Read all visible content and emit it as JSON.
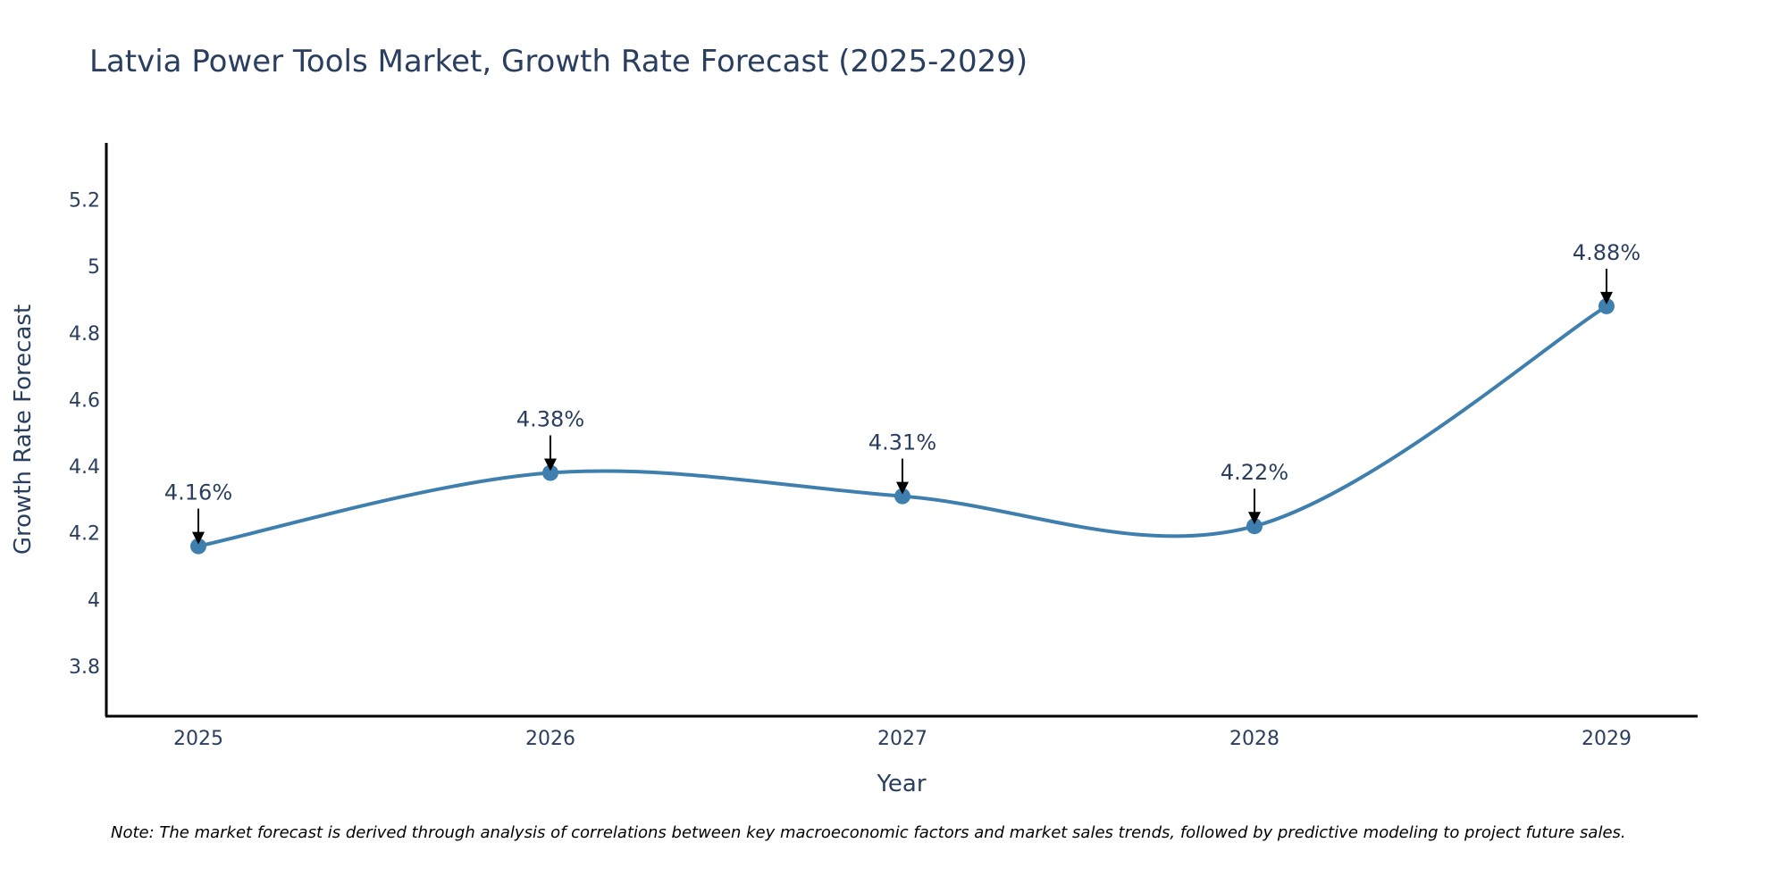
{
  "chart_data": {
    "type": "line",
    "title": "Latvia Power Tools Market, Growth Rate Forecast (2025-2029)",
    "xlabel": "Year",
    "ylabel": "Growth Rate Forecast",
    "categories": [
      "2025",
      "2026",
      "2027",
      "2028",
      "2029"
    ],
    "series": [
      {
        "name": "Growth Rate Forecast",
        "values": [
          4.16,
          4.38,
          4.31,
          4.22,
          4.88
        ],
        "color": "#3f7fad"
      }
    ],
    "data_labels": [
      "4.16%",
      "4.38%",
      "4.31%",
      "4.22%",
      "4.88%"
    ],
    "yticks": [
      3.8,
      4,
      4.2,
      4.4,
      4.6,
      4.8,
      5,
      5.2
    ],
    "ytick_labels": [
      "3.8",
      "4",
      "4.2",
      "4.4",
      "4.6",
      "4.8",
      "5",
      "5.2"
    ],
    "ylim": [
      3.65,
      5.37
    ],
    "grid": false,
    "legend": "none",
    "note": "Note: The market forecast is derived through analysis of correlations between key macroeconomic factors and market sales trends, followed by predictive modeling to project future sales."
  }
}
